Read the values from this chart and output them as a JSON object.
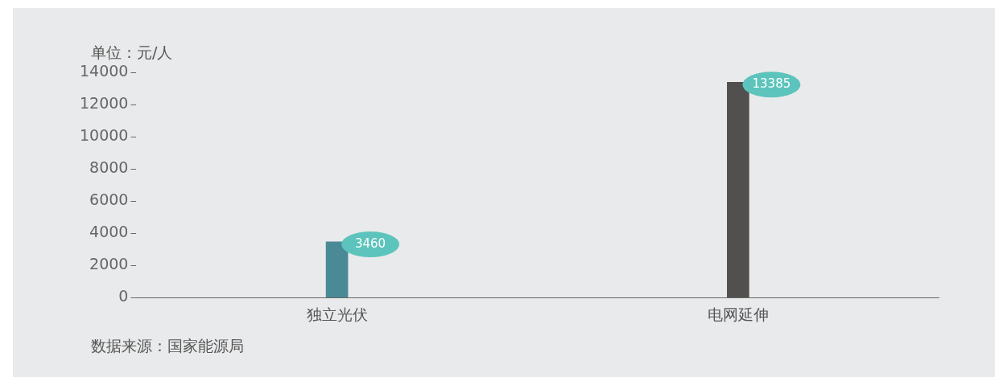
{
  "chart_data": {
    "type": "bar",
    "ylabel": "单位：元/人",
    "annotations": [
      "数据来源：国家能源局"
    ],
    "categories": [
      "独立光伏",
      "电网延伸"
    ],
    "values": [
      3460,
      13385
    ],
    "colors": [
      "#4a8a96",
      "#51504e"
    ],
    "ylim": [
      0,
      14000
    ],
    "yticks": [
      0,
      2000,
      4000,
      6000,
      8000,
      10000,
      12000,
      14000
    ],
    "grid": false,
    "legend": false,
    "data_labels": true
  }
}
